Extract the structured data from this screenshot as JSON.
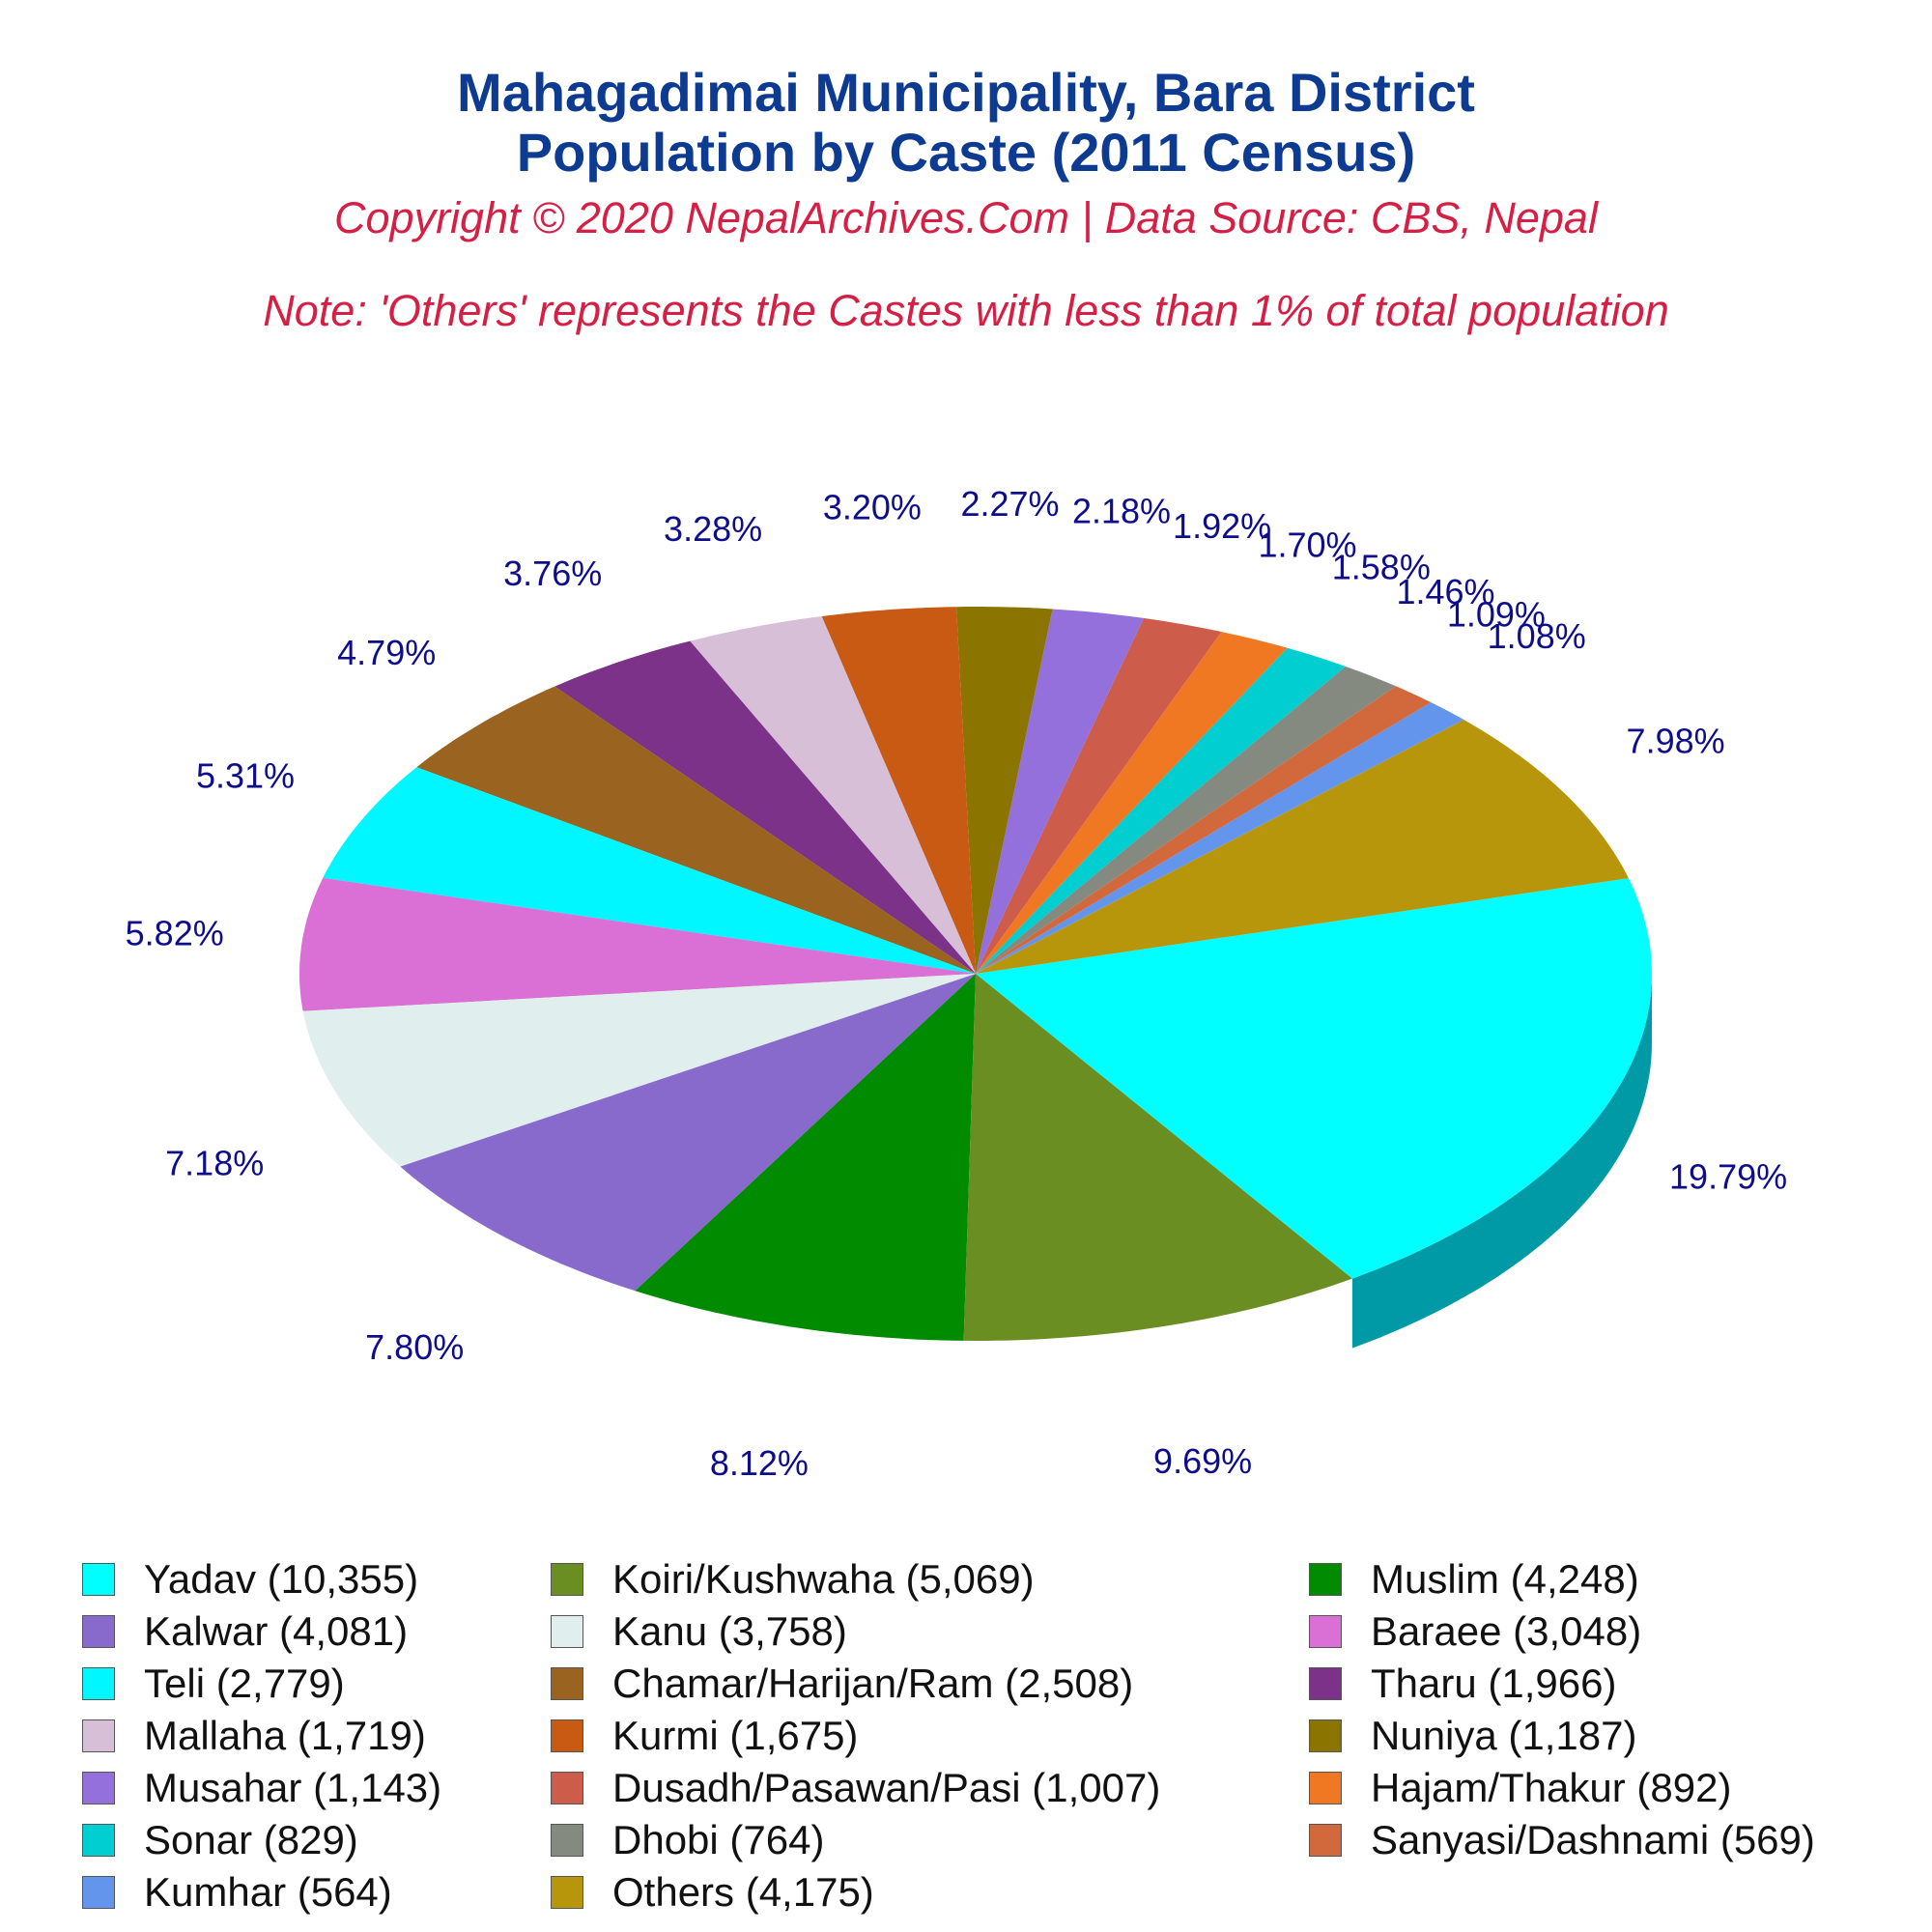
{
  "header": {
    "title_line1": "Mahagadimai Municipality, Bara District",
    "title_line2": "Population by Caste (2011 Census)",
    "copyright": "Copyright © 2020 NepalArchives.Com | Data Source: CBS, Nepal",
    "note": "Note: 'Others' represents the Castes with less than 1% of total population"
  },
  "chart_data": {
    "type": "pie",
    "style": "3d",
    "slices": [
      {
        "label": "Yadav",
        "value": 10355,
        "percent": "19.79%",
        "legend": "Yadav (10,355)",
        "color": "#00FFFF",
        "side": "#009AA6"
      },
      {
        "label": "Others",
        "value": 4175,
        "percent": "7.98%",
        "legend": "Others (4,175)",
        "color": "#B8960C",
        "side": "#6B5200"
      },
      {
        "label": "Kumhar",
        "value": 564,
        "percent": "1.08%",
        "legend": "Kumhar (564)",
        "color": "#6495ED",
        "side": "#2A4A8C"
      },
      {
        "label": "Sanyasi/Dashnami",
        "value": 569,
        "percent": "1.09%",
        "legend": "Sanyasi/Dashnami (569)",
        "color": "#D2693C",
        "side": "#7A3414"
      },
      {
        "label": "Dhobi",
        "value": 764,
        "percent": "1.46%",
        "legend": "Dhobi (764)",
        "color": "#848A80",
        "side": "#3E4A40"
      },
      {
        "label": "Sonar",
        "value": 829,
        "percent": "1.58%",
        "legend": "Sonar (829)",
        "color": "#00CED1",
        "side": "#006B6D"
      },
      {
        "label": "Hajam/Thakur",
        "value": 892,
        "percent": "1.70%",
        "legend": "Hajam/Thakur (892)",
        "color": "#F07823",
        "side": "#8A3000"
      },
      {
        "label": "Dusadh/Pasawan/Pasi",
        "value": 1007,
        "percent": "1.92%",
        "legend": "Dusadh/Pasawan/Pasi (1,007)",
        "color": "#CD5C4A",
        "side": "#7A0000"
      },
      {
        "label": "Musahar",
        "value": 1143,
        "percent": "2.18%",
        "legend": "Musahar (1,143)",
        "color": "#9370DB",
        "side": "#341580"
      },
      {
        "label": "Nuniya",
        "value": 1187,
        "percent": "2.27%",
        "legend": "Nuniya (1,187)",
        "color": "#8B7500",
        "side": "#2E1E00"
      },
      {
        "label": "Kurmi",
        "value": 1675,
        "percent": "3.20%",
        "legend": "Kurmi (1,675)",
        "color": "#C85A14",
        "side": "#6E0000"
      },
      {
        "label": "Mallaha",
        "value": 1719,
        "percent": "3.28%",
        "legend": "Mallaha (1,719)",
        "color": "#D8BFD8",
        "side": "#7D6478"
      },
      {
        "label": "Tharu",
        "value": 1966,
        "percent": "3.76%",
        "legend": "Tharu (1,966)",
        "color": "#7B3288",
        "side": "#200030"
      },
      {
        "label": "Chamar/Harijan/Ram",
        "value": 2508,
        "percent": "4.79%",
        "legend": "Chamar/Harijan/Ram (2,508)",
        "color": "#9A6420",
        "side": "#420C00"
      },
      {
        "label": "Teli",
        "value": 2779,
        "percent": "5.31%",
        "legend": "Teli (2,779)",
        "color": "#00F7FF",
        "side": "#009AA6"
      },
      {
        "label": "Baraee",
        "value": 3048,
        "percent": "5.82%",
        "legend": "Baraee (3,048)",
        "color": "#DA70D6",
        "side": "#801580"
      },
      {
        "label": "Kanu",
        "value": 3758,
        "percent": "7.18%",
        "legend": "Kanu (3,758)",
        "color": "#E0EEEE",
        "side": "#889494"
      },
      {
        "label": "Kalwar",
        "value": 4081,
        "percent": "7.80%",
        "legend": "Kalwar (4,081)",
        "color": "#886ACC",
        "side": "#2A126E"
      },
      {
        "label": "Muslim",
        "value": 4248,
        "percent": "8.12%",
        "legend": "Muslim (4,248)",
        "color": "#008B00",
        "side": "#004000"
      },
      {
        "label": "Koiri/Kushwaha",
        "value": 5069,
        "percent": "9.69%",
        "legend": "Koiri/Kushwaha (5,069)",
        "color": "#6B8E23",
        "side": "#304010"
      }
    ],
    "legend_order": [
      "Yadav",
      "Koiri/Kushwaha",
      "Muslim",
      "Kalwar",
      "Kanu",
      "Baraee",
      "Teli",
      "Chamar/Harijan/Ram",
      "Tharu",
      "Mallaha",
      "Kurmi",
      "Nuniya",
      "Musahar",
      "Dusadh/Pasawan/Pasi",
      "Hajam/Thakur",
      "Sonar",
      "Dhobi",
      "Sanyasi/Dashnami",
      "Kumhar",
      "Others"
    ],
    "legend_placement": "bottom",
    "legend_columns": 3
  }
}
